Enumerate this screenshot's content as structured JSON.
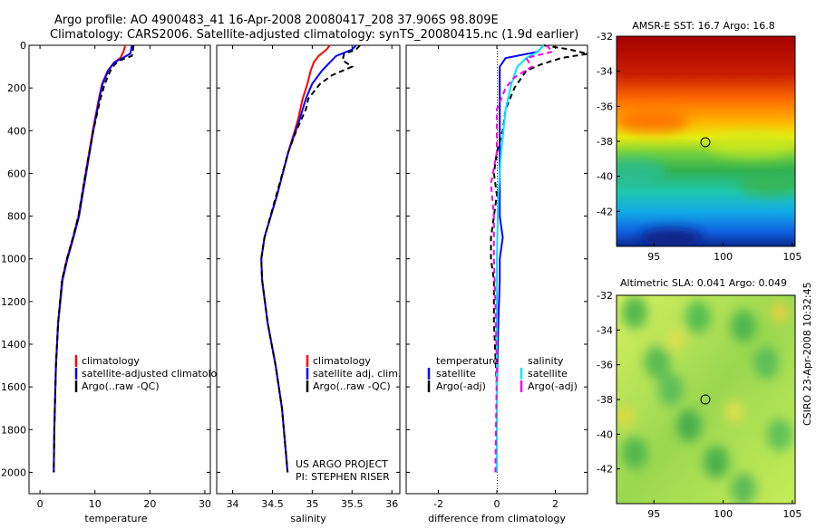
{
  "title_line1": "Argo profile: AO 4900483_41 16-Apr-2008 20080417_208 37.906S 98.809E",
  "title_line2": "Climatology: CARS2006. Satellite-adjusted climatology: synTS_20080415.nc (1.9d earlier)",
  "credit": "CSIRO 23-Apr-2008 10:32:45",
  "colors": {
    "climatology": "#ff0000",
    "satellite": "#0000ff",
    "argo": "#000000",
    "sal_sat": "#00e5ff",
    "sal_argo": "#ee00ee"
  },
  "chart_data": [
    {
      "type": "line",
      "id": "temperature",
      "xlabel": "temperature",
      "ylabel": "",
      "xlim": [
        -2,
        31
      ],
      "ylim": [
        2100,
        0
      ],
      "xticks": [
        0,
        10,
        20,
        30
      ],
      "yticks": [
        0,
        200,
        400,
        600,
        800,
        1000,
        1200,
        1400,
        1600,
        1800,
        2000
      ],
      "legend": [
        "climatology",
        "satellite-adjusted climatology",
        "Argo(..raw -QC)"
      ],
      "series": [
        {
          "name": "climatology",
          "color": "climatology",
          "style": "solid",
          "depth": [
            0,
            30,
            60,
            80,
            120,
            180,
            250,
            400,
            600,
            800,
            900,
            1000,
            1100,
            1300,
            1500,
            1800,
            2000
          ],
          "values": [
            15.5,
            15.2,
            14.6,
            13.5,
            12.3,
            11.3,
            10.7,
            9.6,
            8.3,
            7.0,
            6.0,
            4.9,
            4.0,
            3.3,
            2.9,
            2.6,
            2.5
          ]
        },
        {
          "name": "satellite-adjusted climatology",
          "color": "satellite",
          "style": "solid",
          "depth": [
            0,
            20,
            40,
            60,
            80,
            120,
            180,
            250,
            400,
            600,
            800,
            900,
            1000,
            1100,
            1300,
            1500,
            1800,
            2000
          ],
          "values": [
            16.7,
            16.6,
            16.4,
            15.0,
            13.5,
            12.4,
            11.4,
            10.8,
            9.7,
            8.4,
            7.1,
            6.1,
            5.0,
            4.1,
            3.3,
            2.9,
            2.6,
            2.5
          ]
        },
        {
          "name": "Argo(..raw -QC)",
          "color": "argo",
          "style": "dash",
          "depth": [
            0,
            30,
            50,
            70,
            90,
            120,
            180,
            250,
            400,
            600,
            800,
            900,
            1000,
            1100,
            1300,
            1500,
            1800,
            2000
          ],
          "values": [
            17.0,
            16.9,
            16.7,
            14.6,
            13.6,
            12.8,
            11.8,
            11.0,
            9.7,
            8.3,
            7.0,
            6.0,
            4.9,
            4.0,
            3.3,
            2.9,
            2.6,
            2.5
          ]
        }
      ]
    },
    {
      "type": "line",
      "id": "salinity",
      "xlabel": "salinity",
      "ylabel": "",
      "xlim": [
        33.8,
        36.1
      ],
      "ylim": [
        2100,
        0
      ],
      "xticks": [
        34,
        34.5,
        35,
        35.5,
        36
      ],
      "xticklabels": [
        "34",
        "34.5",
        "35",
        "35.5",
        "36"
      ],
      "legend": [
        "climatology",
        "satellite adj. clim.",
        "Argo(..raw -QC)"
      ],
      "annotation": [
        "US ARGO PROJECT",
        "PI: STEPHEN RISER"
      ],
      "series": [
        {
          "name": "climatology",
          "color": "climatology",
          "style": "solid",
          "depth": [
            0,
            20,
            50,
            80,
            120,
            180,
            250,
            350,
            500,
            700,
            900,
            1000,
            1100,
            1300,
            1500,
            1700,
            2000
          ],
          "values": [
            35.22,
            35.18,
            35.08,
            35.02,
            34.98,
            34.94,
            34.88,
            34.82,
            34.7,
            34.56,
            34.4,
            34.36,
            34.37,
            34.44,
            34.54,
            34.62,
            34.69
          ]
        },
        {
          "name": "satellite adj. clim.",
          "color": "satellite",
          "style": "solid",
          "depth": [
            0,
            20,
            50,
            80,
            120,
            180,
            250,
            350,
            500,
            700,
            900,
            1000,
            1100,
            1300,
            1500,
            1700,
            2000
          ],
          "values": [
            35.55,
            35.5,
            35.3,
            35.22,
            35.12,
            35.0,
            34.92,
            34.84,
            34.7,
            34.56,
            34.4,
            34.36,
            34.37,
            34.44,
            34.54,
            34.62,
            34.69
          ]
        },
        {
          "name": "Argo(..raw -QC)",
          "color": "argo",
          "style": "dash",
          "depth": [
            0,
            20,
            40,
            70,
            100,
            140,
            180,
            250,
            300,
            400,
            500,
            700,
            900,
            1000,
            1100,
            1300,
            1500,
            1700,
            2000
          ],
          "values": [
            35.6,
            35.55,
            35.4,
            35.38,
            35.5,
            35.25,
            35.1,
            34.95,
            34.92,
            34.8,
            34.7,
            34.55,
            34.4,
            34.36,
            34.37,
            34.44,
            34.54,
            34.62,
            34.69
          ]
        }
      ]
    },
    {
      "type": "line",
      "id": "difference",
      "xlabel": "difference from climatology",
      "ylabel": "",
      "xlim": [
        -3.1,
        3.1
      ],
      "ylim": [
        2100,
        0
      ],
      "xticks": [
        -2,
        0,
        2
      ],
      "legend_temperature_title": "temperature",
      "legend_salinity_title": "salinity",
      "legend_temperature": [
        "satellite",
        "Argo(-adj)"
      ],
      "legend_salinity": [
        "satellite",
        "Argo(-adj)"
      ],
      "series": [
        {
          "name": "temperature satellite",
          "color": "satellite",
          "style": "solid",
          "depth": [
            0,
            30,
            60,
            100,
            180,
            300,
            500,
            700,
            800,
            900,
            1000,
            1100,
            1300,
            1600,
            2000
          ],
          "values": [
            1.6,
            1.4,
            0.3,
            0.1,
            0.1,
            0.1,
            0.1,
            0.1,
            0.1,
            0.2,
            0.1,
            0.1,
            0.05,
            0.0,
            0.0
          ]
        },
        {
          "name": "temperature Argo(-adj)",
          "color": "argo",
          "style": "dash",
          "depth": [
            0,
            20,
            40,
            60,
            90,
            120,
            200,
            300,
            400,
            500,
            600,
            700,
            800,
            900,
            1000,
            1100,
            1300,
            1600,
            2000
          ],
          "values": [
            1.6,
            2.5,
            3.1,
            2.2,
            1.5,
            1.0,
            0.6,
            0.3,
            0.2,
            0.0,
            -0.1,
            0.0,
            -0.1,
            -0.2,
            -0.2,
            -0.1,
            -0.1,
            0.0,
            0.0
          ]
        },
        {
          "name": "salinity satellite",
          "color": "sal_sat",
          "style": "solid",
          "depth": [
            0,
            30,
            60,
            100,
            180,
            300,
            500,
            700,
            1000,
            1400,
            2000
          ],
          "values": [
            1.6,
            1.4,
            1.0,
            0.7,
            0.5,
            0.3,
            0.15,
            0.05,
            0.0,
            0.0,
            0.0
          ]
        },
        {
          "name": "salinity Argo(-adj)",
          "color": "sal_argo",
          "style": "dash",
          "depth": [
            0,
            30,
            60,
            100,
            150,
            200,
            300,
            500,
            650,
            800,
            1000,
            1200,
            1500,
            2000
          ],
          "values": [
            1.7,
            1.9,
            1.0,
            1.2,
            0.6,
            0.3,
            0.0,
            0.0,
            -0.2,
            -0.1,
            -0.1,
            -0.05,
            0.0,
            -0.05
          ]
        }
      ]
    },
    {
      "type": "heatmap",
      "id": "sst_map",
      "title": "AMSR-E SST: 16.7 Argo: 16.8",
      "xlim": [
        92.3,
        105.2
      ],
      "ylim": [
        -44,
        -32
      ],
      "xticks": [
        95,
        100,
        105
      ],
      "yticks": [
        -32,
        -34,
        -36,
        -38,
        -40,
        -42
      ],
      "marker": {
        "lon": 98.8,
        "lat": -37.9
      }
    },
    {
      "type": "heatmap",
      "id": "sla_map",
      "title": "Altimetric SLA: 0.041 Argo: 0.049",
      "xlim": [
        92.3,
        105.2
      ],
      "ylim": [
        -44,
        -32
      ],
      "xticks": [
        95,
        100,
        105
      ],
      "yticks": [
        -32,
        -34,
        -36,
        -38,
        -40,
        -42
      ],
      "marker": {
        "lon": 98.8,
        "lat": -37.9
      }
    }
  ]
}
